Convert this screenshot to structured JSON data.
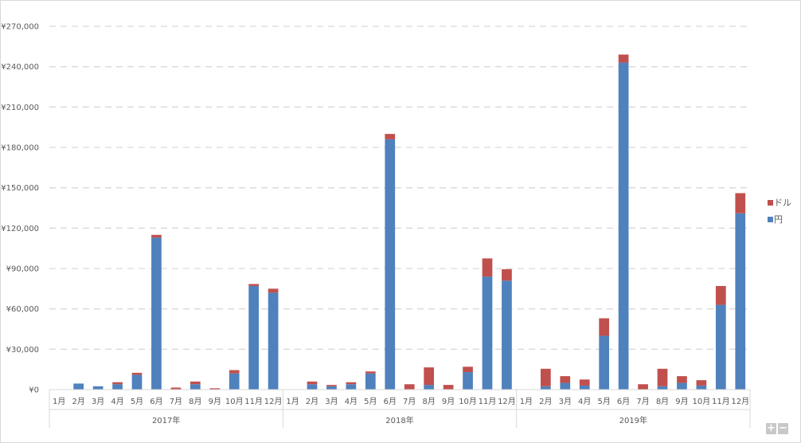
{
  "chart_data": {
    "type": "bar",
    "stacked": true,
    "title": "",
    "xlabel": "",
    "ylabel": "",
    "ylim": [
      0,
      270000
    ],
    "y_ticks": [
      0,
      30000,
      60000,
      90000,
      120000,
      150000,
      180000,
      210000,
      240000,
      270000
    ],
    "y_tick_labels": [
      "¥0",
      "¥30,000",
      "¥60,000",
      "¥90,000",
      "¥120,000",
      "¥150,000",
      "¥180,000",
      "¥210,000",
      "¥240,000",
      "¥270,000"
    ],
    "grid": true,
    "legend_position": "right",
    "groups": [
      {
        "label": "2017年",
        "categories": [
          "1月",
          "2月",
          "3月",
          "4月",
          "5月",
          "6月",
          "7月",
          "8月",
          "9月",
          "10月",
          "11月",
          "12月"
        ]
      },
      {
        "label": "2018年",
        "categories": [
          "1月",
          "2月",
          "3月",
          "4月",
          "5月",
          "6月",
          "7月",
          "8月",
          "9月",
          "10月",
          "11月",
          "12月"
        ]
      },
      {
        "label": "2019年",
        "categories": [
          "1月",
          "2月",
          "3月",
          "4月",
          "5月",
          "6月",
          "7月",
          "8月",
          "9月",
          "10月",
          "11月",
          "12月"
        ]
      }
    ],
    "series": [
      {
        "name": "円",
        "color": "#4f81bd",
        "values": [
          0,
          4500,
          2500,
          4000,
          11000,
          113000,
          0,
          4000,
          0,
          12000,
          77000,
          72000,
          0,
          4000,
          2500,
          4000,
          12000,
          186000,
          0,
          3500,
          0,
          13000,
          84000,
          81000,
          0,
          2500,
          5000,
          3000,
          40000,
          243000,
          0,
          2500,
          5000,
          3000,
          63000,
          131000
        ]
      },
      {
        "name": "ドル",
        "color": "#c0504d",
        "values": [
          0,
          0,
          0,
          1500,
          1500,
          2000,
          1500,
          2000,
          1000,
          2500,
          1500,
          3000,
          0,
          2000,
          1000,
          1500,
          1500,
          4000,
          4000,
          13000,
          3500,
          4000,
          13500,
          8500,
          0,
          13000,
          5000,
          4500,
          13000,
          6000,
          4000,
          13000,
          5000,
          4000,
          14000,
          15000
        ]
      }
    ]
  },
  "legend": {
    "items": [
      {
        "label": "ドル",
        "color": "#c0504d"
      },
      {
        "label": "円",
        "color": "#4f81bd"
      }
    ]
  },
  "controls": {
    "zoom_in": "+",
    "zoom_out": "−"
  }
}
